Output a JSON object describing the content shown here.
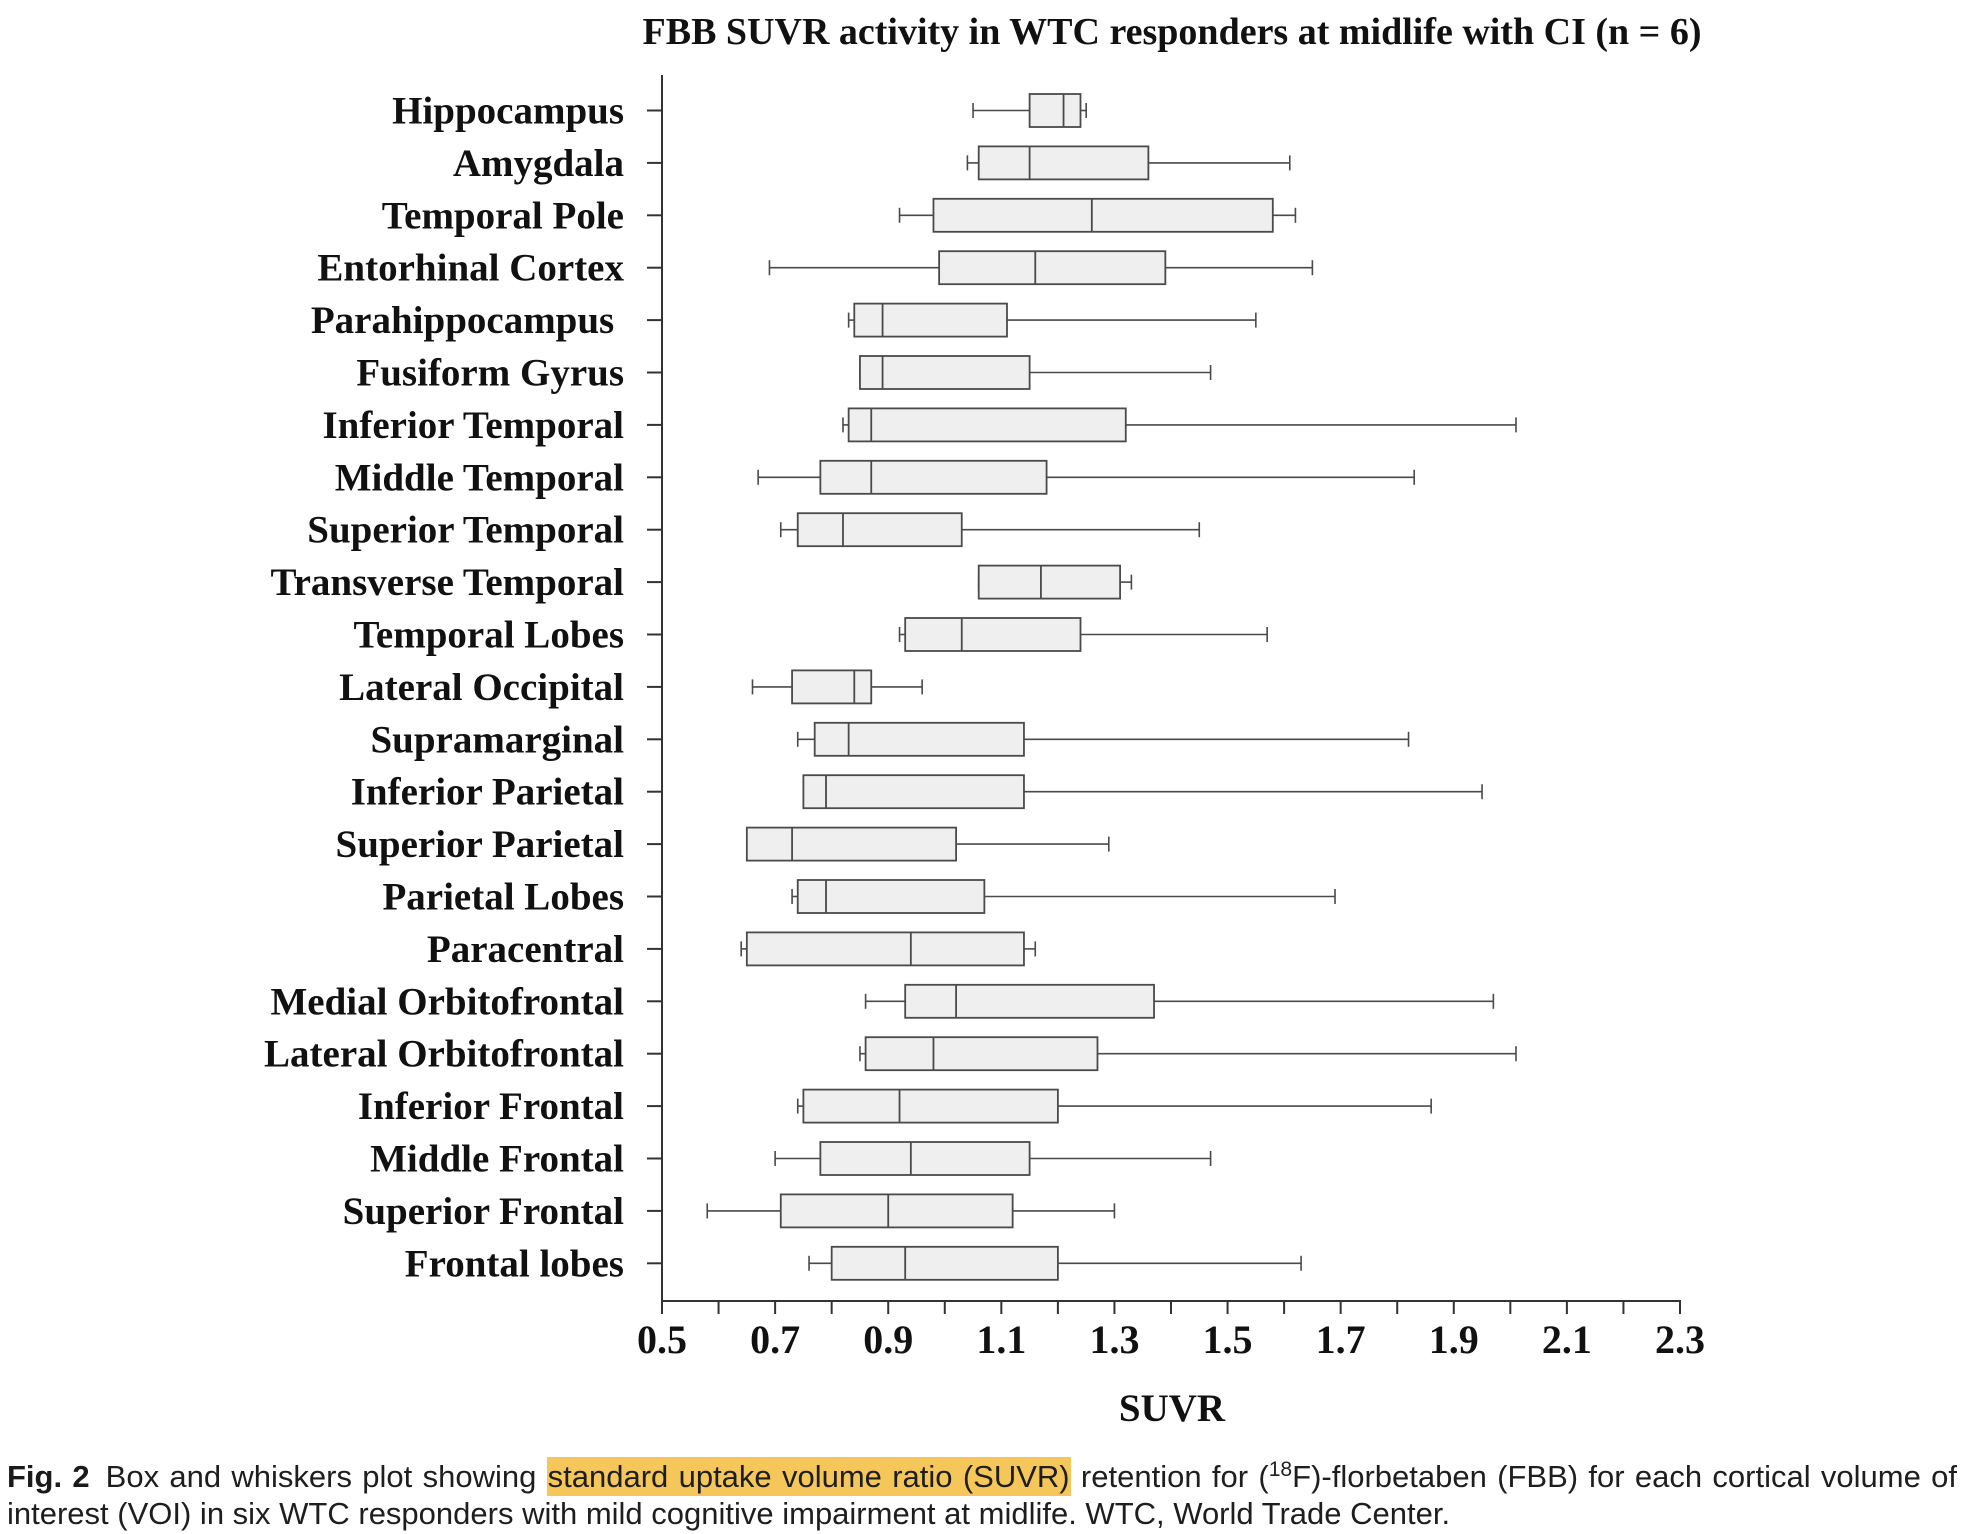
{
  "colors": {
    "text": "#111111",
    "axis": "#333333",
    "box_fill": "#efefef",
    "box_stroke": "#4a4a4a",
    "highlight": "#f5c65a"
  },
  "caption": {
    "label": "Fig. 2",
    "text_before_highlight": "Box and whiskers plot showing ",
    "highlight": "standard uptake volume ratio (SUVR)",
    "text_after_highlight": " retention for (",
    "superscript": "18",
    "text_after_superscript": "F)-florbetaben (FBB) for each cortical volume of",
    "line_2": "interest (VOI) in six WTC responders with mild cognitive impairment at midlife. WTC, World Trade Center."
  },
  "chart_data": {
    "type": "box",
    "orientation": "horizontal",
    "title": "FBB SUVR activity in WTC responders at midlife with CI (n = 6)",
    "xlabel": "SUVR",
    "xlim": [
      0.5,
      2.3
    ],
    "x_tick_labels": [
      "0.5",
      "0.7",
      "0.9",
      "1.1",
      "1.3",
      "1.5",
      "1.7",
      "1.9",
      "2.1",
      "2.3"
    ],
    "grid": false,
    "legend": "none",
    "boxes": [
      {
        "category": "Hippocampus",
        "min": 1.05,
        "q1": 1.15,
        "median": 1.21,
        "q3": 1.24,
        "max": 1.25
      },
      {
        "category": "Amygdala",
        "min": 1.04,
        "q1": 1.06,
        "median": 1.15,
        "q3": 1.36,
        "max": 1.61
      },
      {
        "category": "Temporal Pole",
        "min": 0.92,
        "q1": 0.98,
        "median": 1.26,
        "q3": 1.58,
        "max": 1.62
      },
      {
        "category": "Entorhinal Cortex",
        "min": 0.69,
        "q1": 0.99,
        "median": 1.16,
        "q3": 1.39,
        "max": 1.65
      },
      {
        "category": "Parahippocampus ",
        "min": 0.83,
        "q1": 0.84,
        "median": 0.89,
        "q3": 1.11,
        "max": 1.55
      },
      {
        "category": "Fusiform Gyrus",
        "min": 0.85,
        "q1": 0.85,
        "median": 0.89,
        "q3": 1.15,
        "max": 1.47
      },
      {
        "category": "Inferior Temporal",
        "min": 0.82,
        "q1": 0.83,
        "median": 0.87,
        "q3": 1.32,
        "max": 2.01
      },
      {
        "category": "Middle Temporal",
        "min": 0.67,
        "q1": 0.78,
        "median": 0.87,
        "q3": 1.18,
        "max": 1.83
      },
      {
        "category": "Superior Temporal",
        "min": 0.71,
        "q1": 0.74,
        "median": 0.82,
        "q3": 1.03,
        "max": 1.45
      },
      {
        "category": "Transverse Temporal",
        "min": 1.06,
        "q1": 1.06,
        "median": 1.17,
        "q3": 1.31,
        "max": 1.33
      },
      {
        "category": "Temporal Lobes",
        "min": 0.92,
        "q1": 0.93,
        "median": 1.03,
        "q3": 1.24,
        "max": 1.57
      },
      {
        "category": "Lateral Occipital",
        "min": 0.66,
        "q1": 0.73,
        "median": 0.84,
        "q3": 0.87,
        "max": 0.96
      },
      {
        "category": "Supramarginal",
        "min": 0.74,
        "q1": 0.77,
        "median": 0.83,
        "q3": 1.14,
        "max": 1.82
      },
      {
        "category": "Inferior Parietal",
        "min": 0.75,
        "q1": 0.75,
        "median": 0.79,
        "q3": 1.14,
        "max": 1.95
      },
      {
        "category": "Superior Parietal",
        "min": 0.65,
        "q1": 0.65,
        "median": 0.73,
        "q3": 1.02,
        "max": 1.29
      },
      {
        "category": "Parietal Lobes",
        "min": 0.73,
        "q1": 0.74,
        "median": 0.79,
        "q3": 1.07,
        "max": 1.69
      },
      {
        "category": "Paracentral",
        "min": 0.64,
        "q1": 0.65,
        "median": 0.94,
        "q3": 1.14,
        "max": 1.16
      },
      {
        "category": "Medial Orbitofrontal",
        "min": 0.86,
        "q1": 0.93,
        "median": 1.02,
        "q3": 1.37,
        "max": 1.97
      },
      {
        "category": "Lateral Orbitofrontal",
        "min": 0.85,
        "q1": 0.86,
        "median": 0.98,
        "q3": 1.27,
        "max": 2.01
      },
      {
        "category": "Inferior Frontal",
        "min": 0.74,
        "q1": 0.75,
        "median": 0.92,
        "q3": 1.2,
        "max": 1.86
      },
      {
        "category": "Middle Frontal",
        "min": 0.7,
        "q1": 0.78,
        "median": 0.94,
        "q3": 1.15,
        "max": 1.47
      },
      {
        "category": "Superior Frontal",
        "min": 0.58,
        "q1": 0.71,
        "median": 0.9,
        "q3": 1.12,
        "max": 1.3
      },
      {
        "category": "Frontal lobes",
        "min": 0.76,
        "q1": 0.8,
        "median": 0.93,
        "q3": 1.2,
        "max": 1.63
      }
    ]
  }
}
